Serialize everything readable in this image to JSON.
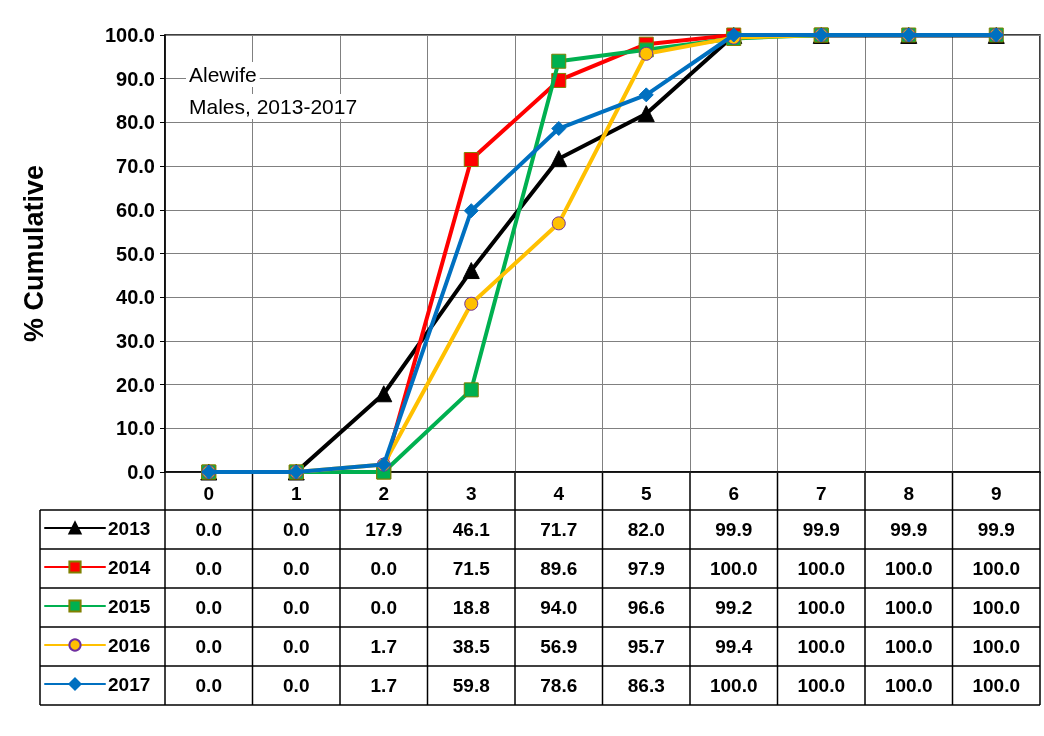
{
  "chart_data": {
    "type": "line",
    "ylabel": "% Cumulative",
    "annotations": [
      "Alewife",
      "Males, 2013-2017"
    ],
    "categories": [
      "0",
      "1",
      "2",
      "3",
      "4",
      "5",
      "6",
      "7",
      "8",
      "9"
    ],
    "series": [
      {
        "name": "2013",
        "color": "#000000",
        "marker": "triangle",
        "values": [
          0.0,
          0.0,
          17.9,
          46.1,
          71.7,
          82.0,
          99.9,
          99.9,
          99.9,
          99.9
        ],
        "value_labels": [
          "0.0",
          "0.0",
          "17.9",
          "46.1",
          "71.7",
          "82.0",
          "99.9",
          "99.9",
          "99.9",
          "99.9"
        ]
      },
      {
        "name": "2014",
        "color": "#ff0000",
        "marker": "square",
        "values": [
          0.0,
          0.0,
          0.0,
          71.5,
          89.6,
          97.9,
          100.0,
          100.0,
          null,
          null
        ],
        "value_labels": [
          "0.0",
          "0.0",
          "0.0",
          "71.5",
          "89.6",
          "97.9",
          "100.0",
          "100.0",
          "100.0",
          "100.0"
        ]
      },
      {
        "name": "2015",
        "color": "#00b050",
        "marker": "square",
        "values": [
          0.0,
          0.0,
          0.0,
          18.8,
          94.0,
          96.6,
          99.2,
          100.0,
          100.0,
          100.0
        ],
        "value_labels": [
          "0.0",
          "0.0",
          "0.0",
          "18.8",
          "94.0",
          "96.6",
          "99.2",
          "100.0",
          "100.0",
          "100.0"
        ]
      },
      {
        "name": "2016",
        "color": "#ffc000",
        "marker": "circle",
        "values": [
          0.0,
          0.0,
          1.7,
          38.5,
          56.9,
          95.7,
          99.4,
          100.0,
          100.0,
          100.0
        ],
        "value_labels": [
          "0.0",
          "0.0",
          "1.7",
          "38.5",
          "56.9",
          "95.7",
          "99.4",
          "100.0",
          "100.0",
          "100.0"
        ]
      },
      {
        "name": "2017",
        "color": "#0070c0",
        "marker": "diamond",
        "values": [
          0.0,
          0.0,
          1.7,
          59.8,
          78.6,
          86.3,
          100.0,
          100.0,
          100.0,
          100.0
        ],
        "value_labels": [
          "0.0",
          "0.0",
          "1.7",
          "59.8",
          "78.6",
          "86.3",
          "100.0",
          "100.0",
          "100.0",
          "100.0"
        ]
      }
    ],
    "ylim": [
      0,
      100
    ],
    "yticks": [
      {
        "value": 0,
        "label": "0.0"
      },
      {
        "value": 10,
        "label": "10.0"
      },
      {
        "value": 20,
        "label": "20.0"
      },
      {
        "value": 30,
        "label": "30.0"
      },
      {
        "value": 40,
        "label": "40.0"
      },
      {
        "value": 50,
        "label": "50.0"
      },
      {
        "value": 60,
        "label": "60.0"
      },
      {
        "value": 70,
        "label": "70.0"
      },
      {
        "value": 80,
        "label": "80.0"
      },
      {
        "value": 90,
        "label": "90.0"
      },
      {
        "value": 100,
        "label": "100.0"
      }
    ],
    "grid": true,
    "legend": "bottom left",
    "line_style": "solid"
  }
}
